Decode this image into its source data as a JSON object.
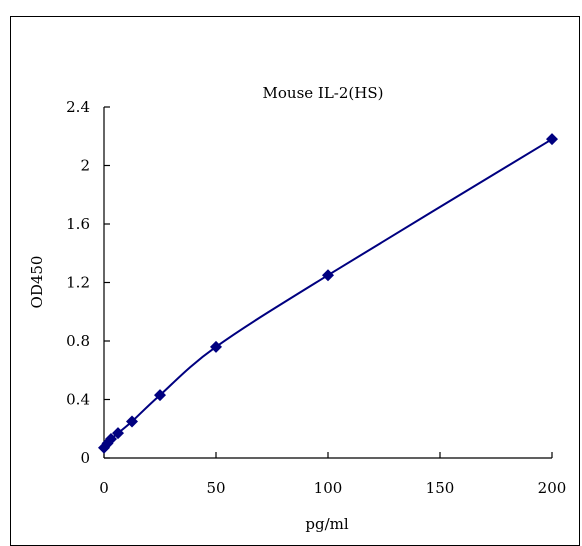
{
  "chart_data": {
    "type": "line",
    "title": "Mouse IL-2(HS)",
    "xlabel": "pg/ml",
    "ylabel": "OD450",
    "xlim": [
      0,
      200
    ],
    "ylim": [
      0,
      2.4
    ],
    "x_ticks": [
      "0",
      "50",
      "100",
      "150",
      "200"
    ],
    "y_ticks": [
      "0",
      "0.4",
      "0.8",
      "1.2",
      "1.6",
      "2",
      "2.4"
    ],
    "grid": false,
    "legend": "none",
    "series": [
      {
        "x": [
          0,
          1.56,
          3.13,
          6.25,
          12.5,
          25,
          50,
          100,
          200
        ],
        "y": [
          0.07,
          0.1,
          0.13,
          0.17,
          0.25,
          0.43,
          0.76,
          1.25,
          2.18
        ],
        "marker": "diamond",
        "color": "#000080"
      }
    ]
  }
}
